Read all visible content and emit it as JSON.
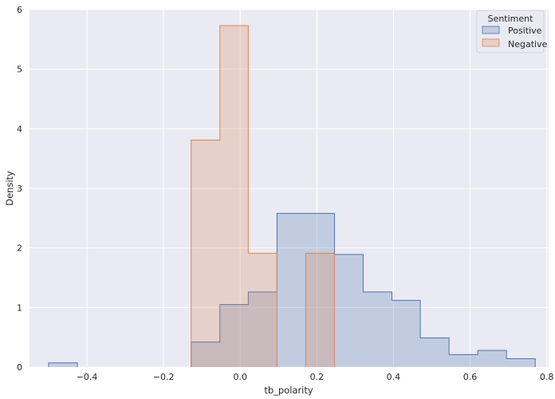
{
  "chart_data": {
    "type": "histogram-step",
    "title": "",
    "xlabel": "tb_polarity",
    "ylabel": "Density",
    "xlim": [
      -0.55,
      0.805
    ],
    "ylim": [
      0,
      6
    ],
    "x_ticks": [
      -0.4,
      -0.2,
      0.0,
      0.2,
      0.4,
      0.6,
      0.8
    ],
    "x_tick_labels": [
      "−0.4",
      "−0.2",
      "0.0",
      "0.2",
      "0.4",
      "0.6",
      "0.8"
    ],
    "y_ticks": [
      0,
      1,
      2,
      3,
      4,
      5,
      6
    ],
    "y_tick_labels": [
      "0",
      "1",
      "2",
      "3",
      "4",
      "5",
      "6"
    ],
    "grid": true,
    "background": "#eaeaf2",
    "legend": {
      "title": "Sentiment",
      "position": "top-right",
      "entries": [
        {
          "label": "Positive",
          "color": "#4c72b0"
        },
        {
          "label": "Negative",
          "color": "#dd8452"
        }
      ]
    },
    "series": [
      {
        "name": "Positive",
        "color": "#4c72b0",
        "bins": [
          {
            "x0": -0.5,
            "x1": -0.425,
            "y": 0.07
          },
          {
            "x0": -0.128,
            "x1": -0.053,
            "y": 0.42
          },
          {
            "x0": -0.053,
            "x1": 0.021,
            "y": 1.05
          },
          {
            "x0": 0.021,
            "x1": 0.096,
            "y": 1.26
          },
          {
            "x0": 0.096,
            "x1": 0.246,
            "y": 2.58
          },
          {
            "x0": 0.246,
            "x1": 0.321,
            "y": 1.89
          },
          {
            "x0": 0.321,
            "x1": 0.396,
            "y": 1.26
          },
          {
            "x0": 0.396,
            "x1": 0.47,
            "y": 1.12
          },
          {
            "x0": 0.47,
            "x1": 0.545,
            "y": 0.49
          },
          {
            "x0": 0.545,
            "x1": 0.62,
            "y": 0.21
          },
          {
            "x0": 0.62,
            "x1": 0.695,
            "y": 0.28
          },
          {
            "x0": 0.695,
            "x1": 0.77,
            "y": 0.14
          }
        ]
      },
      {
        "name": "Negative",
        "color": "#dd8452",
        "bins": [
          {
            "x0": -0.128,
            "x1": -0.053,
            "y": 3.81
          },
          {
            "x0": -0.053,
            "x1": 0.021,
            "y": 5.73
          },
          {
            "x0": 0.021,
            "x1": 0.096,
            "y": 1.91
          },
          {
            "x0": 0.171,
            "x1": 0.246,
            "y": 1.91
          }
        ]
      }
    ]
  }
}
